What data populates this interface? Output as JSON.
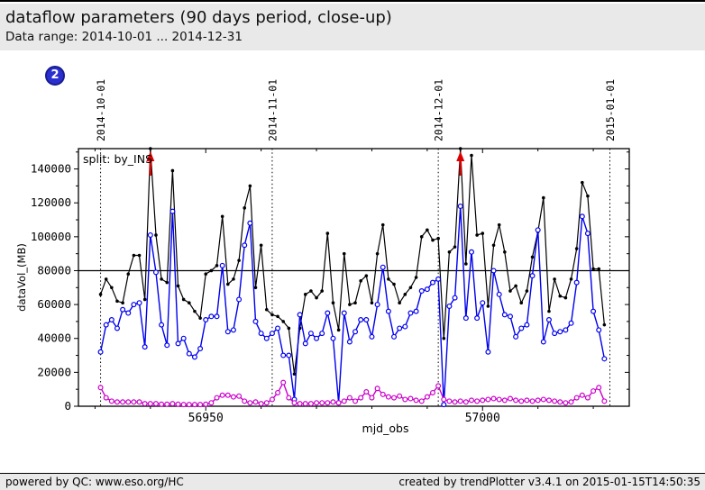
{
  "header": {
    "title": "dataflow parameters (90 days period, close-up)",
    "subtitle": "Data range: 2014-10-01 ... 2014-12-31"
  },
  "badge": {
    "label": "2"
  },
  "footer": {
    "left": "powered by QC: www.eso.org/HC",
    "right": "created by trendPlotter v3.4.1 on 2015-01-15T14:50:35"
  },
  "chart_data": {
    "type": "line",
    "xlabel": "mjd_obs",
    "ylabel": "dataVol_(MB)",
    "annotation": "split: by_INS",
    "xlim": [
      56927,
      57026.5
    ],
    "ylim": [
      0,
      152000
    ],
    "x_tick_labels": [
      "56950",
      "57000"
    ],
    "x_major_ticks": [
      56950,
      57000
    ],
    "x_minor_step": 10,
    "y_tick_labels": [
      "0",
      "20000",
      "40000",
      "60000",
      "80000",
      "100000",
      "120000",
      "140000"
    ],
    "y_major_step": 20000,
    "y_minor_step": 10000,
    "grid": false,
    "legend": "none",
    "avg_line_y": 80000,
    "date_lines": [
      {
        "mjd": 56931,
        "label": "2014-10-01"
      },
      {
        "mjd": 56962,
        "label": "2014-11-01"
      },
      {
        "mjd": 56992,
        "label": "2014-12-01"
      },
      {
        "mjd": 57023,
        "label": "2015-01-01"
      }
    ],
    "outlier_arrows_mjd": [
      56940,
      56996
    ],
    "arrow_color": "#dd0000",
    "mjd_start": 56931,
    "series": [
      {
        "name": "black",
        "color": "#000000",
        "marker": "filled-dot",
        "values": [
          66000,
          75000,
          70000,
          62000,
          61000,
          78000,
          89000,
          89000,
          63000,
          152000,
          101000,
          75000,
          73000,
          139000,
          71000,
          63000,
          61000,
          56000,
          52000,
          78000,
          80000,
          83000,
          112000,
          72000,
          75000,
          86000,
          117000,
          130000,
          70000,
          95000,
          57000,
          54000,
          53000,
          50000,
          46000,
          19000,
          46000,
          66000,
          68000,
          64000,
          68000,
          102000,
          61000,
          45000,
          90000,
          60000,
          61000,
          74000,
          77000,
          61000,
          90000,
          107000,
          75000,
          72000,
          61000,
          66000,
          70000,
          76000,
          100000,
          104000,
          98000,
          99000,
          40000,
          91000,
          94000,
          152000,
          84000,
          148000,
          101000,
          102000,
          59000,
          95000,
          107000,
          91000,
          68000,
          71000,
          61000,
          68000,
          88000,
          103000,
          123000,
          56000,
          75000,
          65000,
          64000,
          75000,
          93000,
          132000,
          124000,
          81000,
          81000,
          48000
        ]
      },
      {
        "name": "blue",
        "color": "#0000ee",
        "marker": "open-circle",
        "values": [
          32000,
          48000,
          51000,
          46000,
          57000,
          55000,
          60000,
          61000,
          35000,
          101000,
          79000,
          48000,
          36000,
          115000,
          37000,
          40000,
          31000,
          29000,
          34000,
          51000,
          53000,
          53000,
          83000,
          44000,
          45000,
          63000,
          95000,
          108000,
          50000,
          43000,
          40000,
          43000,
          46000,
          30000,
          30000,
          4000,
          54000,
          37000,
          43000,
          40000,
          43000,
          55000,
          40000,
          2000,
          55000,
          38000,
          44000,
          51000,
          51000,
          41000,
          60000,
          82000,
          56000,
          41000,
          46000,
          47000,
          55000,
          56000,
          68000,
          69000,
          73000,
          75000,
          1000,
          59000,
          64000,
          118000,
          52000,
          91000,
          52000,
          61000,
          32000,
          80000,
          66000,
          54000,
          53000,
          41000,
          46000,
          48000,
          77000,
          104000,
          38000,
          51000,
          43000,
          44000,
          45000,
          49000,
          73000,
          112000,
          102000,
          56000,
          45000,
          28000
        ]
      },
      {
        "name": "magenta",
        "color": "#cc00cc",
        "marker": "open-circle",
        "values": [
          11000,
          5000,
          3000,
          2500,
          2500,
          2500,
          2500,
          2500,
          1500,
          1500,
          1500,
          1200,
          1200,
          1500,
          1200,
          1000,
          1000,
          1000,
          1000,
          1200,
          2000,
          5000,
          6500,
          6500,
          5500,
          6000,
          3000,
          2000,
          2500,
          1500,
          2000,
          4000,
          8000,
          14000,
          5000,
          2000,
          1500,
          1500,
          1500,
          2000,
          2000,
          2000,
          2500,
          2000,
          3000,
          5000,
          3000,
          5000,
          8500,
          5000,
          10500,
          7000,
          5500,
          5000,
          6000,
          4000,
          4500,
          3500,
          3000,
          5500,
          8000,
          12000,
          4000,
          3000,
          2500,
          3000,
          2500,
          3500,
          3000,
          3500,
          4000,
          4500,
          4000,
          3500,
          4500,
          3500,
          3000,
          3500,
          3000,
          3500,
          4000,
          3500,
          3000,
          2500,
          2000,
          2500,
          5000,
          6500,
          5000,
          9000,
          11000,
          3000
        ]
      }
    ]
  }
}
